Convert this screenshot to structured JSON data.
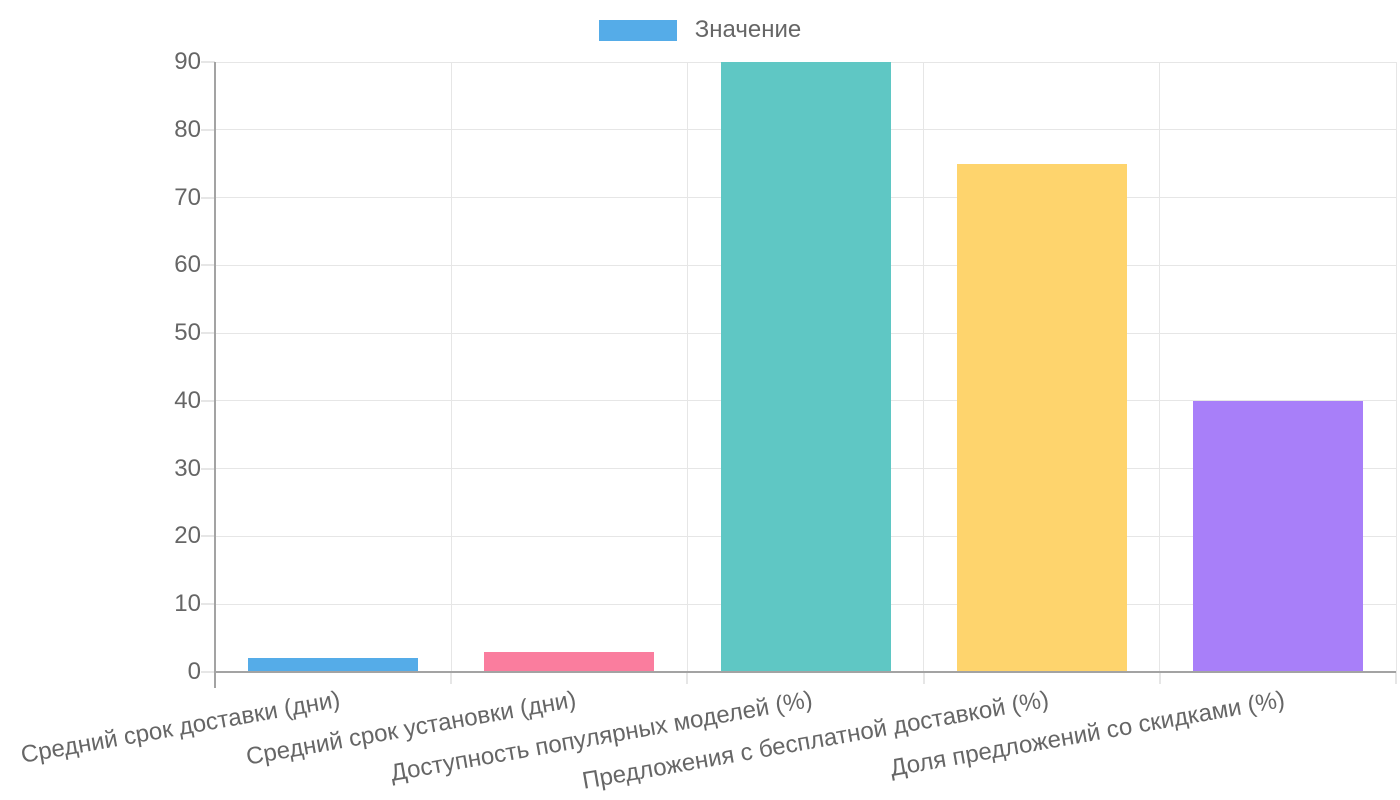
{
  "chart_data": {
    "type": "bar",
    "title": "",
    "legend": {
      "position": "top",
      "label": "Значение",
      "swatch_color": "#55ace8"
    },
    "categories": [
      "Средний срок доставки (дни)",
      "Средний срок установки (дни)",
      "Доступность популярных моделей (%)",
      "Предложения с бесплатной доставкой (%)",
      "Доля предложений со скидками (%)"
    ],
    "series": [
      {
        "name": "Значение",
        "values": [
          2,
          3,
          90,
          75,
          40
        ],
        "colors": [
          "#55ace8",
          "#fa7d9e",
          "#5fc7c4",
          "#fed46d",
          "#a87ff9"
        ]
      }
    ],
    "xlabel": "",
    "ylabel": "",
    "ylim": [
      0,
      90
    ],
    "ytick_step": 10,
    "yticks": [
      "0",
      "10",
      "20",
      "30",
      "40",
      "50",
      "60",
      "70",
      "80",
      "90"
    ],
    "grid": "on",
    "grid_color": "#e6e6e6",
    "axis_color": "#a3a3a3",
    "tick_text_color": "#666666",
    "background_color": "#ffffff"
  }
}
